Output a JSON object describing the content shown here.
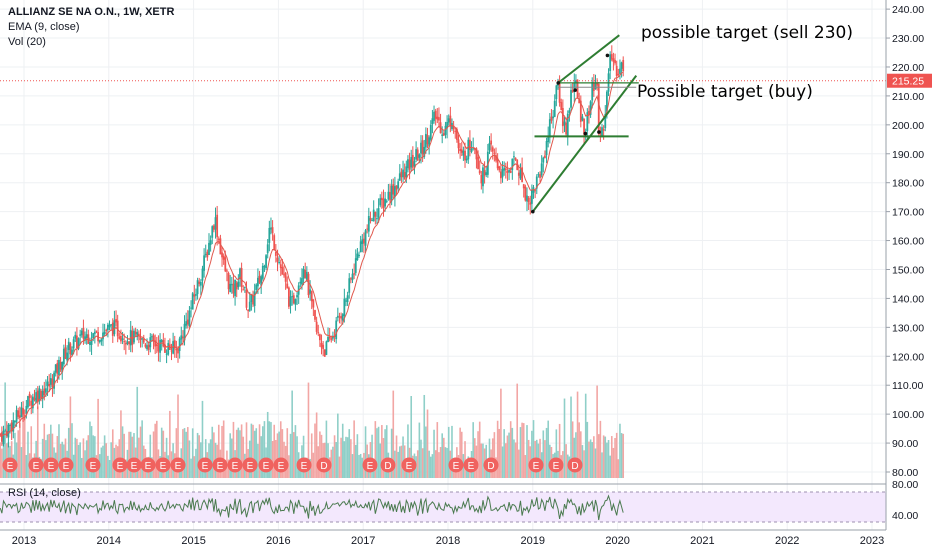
{
  "legend": {
    "title": "ALLIANZ SE NA O.N., 1W, XETR",
    "ema": "EMA (9, close)",
    "vol": "Vol (20)",
    "rsi": "RSI (14, close)"
  },
  "annotations": {
    "sell": "possible target (sell 230)",
    "buy": "Possible target (buy)"
  },
  "price_badge": "215.25",
  "colors": {
    "up": "#26a69a",
    "down": "#ef5350",
    "ema": "#e0584d",
    "trend": "#2e7d32",
    "badge": "#ef5350",
    "rsi": "#4a7a4f"
  },
  "chart_data": {
    "type": "candlestick",
    "x_ticks": [
      "2013",
      "2014",
      "2015",
      "2016",
      "2017",
      "2018",
      "2019",
      "2020",
      "2021",
      "2022",
      "2023"
    ],
    "y_ticks": [
      "240.00",
      "230.00",
      "220.00",
      "210.00",
      "200.00",
      "190.00",
      "180.00",
      "170.00",
      "160.00",
      "150.00",
      "140.00",
      "130.00",
      "120.00",
      "110.00",
      "100.00",
      "90.00",
      "80.00"
    ],
    "ylim": [
      77,
      242
    ],
    "close_path": [
      {
        "x": 2012.75,
        "y": 93
      },
      {
        "x": 2012.95,
        "y": 100
      },
      {
        "x": 2013.1,
        "y": 106
      },
      {
        "x": 2013.3,
        "y": 110
      },
      {
        "x": 2013.5,
        "y": 122
      },
      {
        "x": 2013.7,
        "y": 127
      },
      {
        "x": 2013.9,
        "y": 128
      },
      {
        "x": 2014.05,
        "y": 130
      },
      {
        "x": 2014.2,
        "y": 127
      },
      {
        "x": 2014.4,
        "y": 125
      },
      {
        "x": 2014.6,
        "y": 124
      },
      {
        "x": 2014.8,
        "y": 122
      },
      {
        "x": 2014.95,
        "y": 135
      },
      {
        "x": 2015.15,
        "y": 155
      },
      {
        "x": 2015.25,
        "y": 168
      },
      {
        "x": 2015.35,
        "y": 152
      },
      {
        "x": 2015.45,
        "y": 142
      },
      {
        "x": 2015.55,
        "y": 148
      },
      {
        "x": 2015.65,
        "y": 136
      },
      {
        "x": 2015.8,
        "y": 148
      },
      {
        "x": 2015.9,
        "y": 165
      },
      {
        "x": 2016.05,
        "y": 148
      },
      {
        "x": 2016.15,
        "y": 137
      },
      {
        "x": 2016.3,
        "y": 152
      },
      {
        "x": 2016.45,
        "y": 128
      },
      {
        "x": 2016.55,
        "y": 122
      },
      {
        "x": 2016.65,
        "y": 128
      },
      {
        "x": 2016.8,
        "y": 140
      },
      {
        "x": 2016.95,
        "y": 157
      },
      {
        "x": 2017.1,
        "y": 168
      },
      {
        "x": 2017.3,
        "y": 176
      },
      {
        "x": 2017.5,
        "y": 184
      },
      {
        "x": 2017.7,
        "y": 192
      },
      {
        "x": 2017.85,
        "y": 203
      },
      {
        "x": 2017.95,
        "y": 198
      },
      {
        "x": 2018.05,
        "y": 203
      },
      {
        "x": 2018.15,
        "y": 188
      },
      {
        "x": 2018.3,
        "y": 195
      },
      {
        "x": 2018.4,
        "y": 181
      },
      {
        "x": 2018.5,
        "y": 192
      },
      {
        "x": 2018.65,
        "y": 182
      },
      {
        "x": 2018.8,
        "y": 188
      },
      {
        "x": 2018.95,
        "y": 173
      },
      {
        "x": 2019.1,
        "y": 185
      },
      {
        "x": 2019.2,
        "y": 200
      },
      {
        "x": 2019.3,
        "y": 214
      },
      {
        "x": 2019.35,
        "y": 201
      },
      {
        "x": 2019.4,
        "y": 199
      },
      {
        "x": 2019.45,
        "y": 212
      },
      {
        "x": 2019.5,
        "y": 215
      },
      {
        "x": 2019.55,
        "y": 205
      },
      {
        "x": 2019.62,
        "y": 198
      },
      {
        "x": 2019.7,
        "y": 212
      },
      {
        "x": 2019.75,
        "y": 216
      },
      {
        "x": 2019.78,
        "y": 198
      },
      {
        "x": 2019.82,
        "y": 197
      },
      {
        "x": 2019.88,
        "y": 212
      },
      {
        "x": 2019.92,
        "y": 224
      },
      {
        "x": 2019.96,
        "y": 221
      },
      {
        "x": 2020.0,
        "y": 219
      },
      {
        "x": 2020.04,
        "y": 222
      },
      {
        "x": 2020.08,
        "y": 215
      }
    ],
    "events": [
      "E",
      "E",
      "E",
      "E",
      "E",
      "E",
      "E",
      "E",
      "E",
      "E",
      "E",
      "E",
      "E",
      "E",
      "E",
      "E",
      "E",
      "D",
      "E",
      "D",
      "E",
      "E",
      "E",
      "D",
      "E",
      "E",
      "D",
      "E",
      "E",
      "D",
      "E"
    ]
  }
}
